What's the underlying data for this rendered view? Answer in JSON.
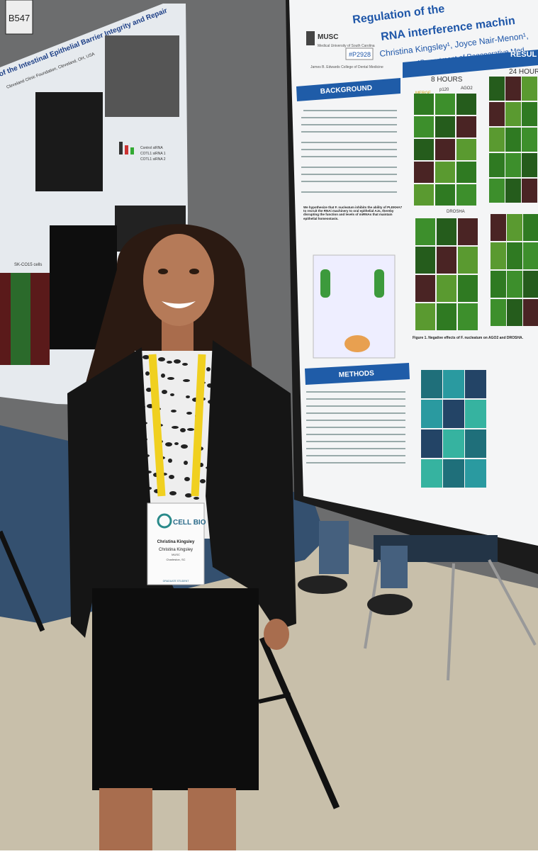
{
  "sign": {
    "number": "B547"
  },
  "left_poster": {
    "title": "of the Intestinal Epithelial Barrier Integrity and Repair",
    "affiliation": "Cleveland Clinic Foundation, Cleveland, OH, USA",
    "panel_label": "SK-CO15 cells",
    "legend": [
      "Control siRNA",
      "COTL1 siRNA 1",
      "COTL1 siRNA 2"
    ]
  },
  "right_poster": {
    "title_line1": "Regulation of the",
    "title_line2": "RNA interference machin",
    "authors": "Christina Kingsley¹, Joyce Nair-Menon¹,",
    "department": "¹Department of Regenerative Med",
    "logo": "MUSC",
    "university": "Medical University of South Carolina",
    "college": "James B. Edwards College of Dental Medicine",
    "poster_id": "#P2928",
    "sections": [
      "BACKGROUND",
      "METHODS"
    ],
    "results": "RESUL",
    "timepoints": [
      "8 HOURS",
      "24 HOURS"
    ],
    "stains": [
      "MERGE",
      "p120",
      "AGO2",
      "DROSHA"
    ],
    "hypothesis": "We hypothesize that F. nucleatum inhibits the ability of PLEKHA7 to recruit the RNAi machinery to oral epithelial AJs, thereby disrupting the function and levels of miRNAs that maintain epithelial homeostasis.",
    "figure1": "Figure 1. Negative effects of F. nucleatum on AGO2 and DROSHA."
  },
  "badge": {
    "event": "CELL BIO",
    "name": "Christina Kingsley",
    "org": "MUSC",
    "city": "Charleston, SC",
    "role": "GRADUATE STUDENT"
  }
}
